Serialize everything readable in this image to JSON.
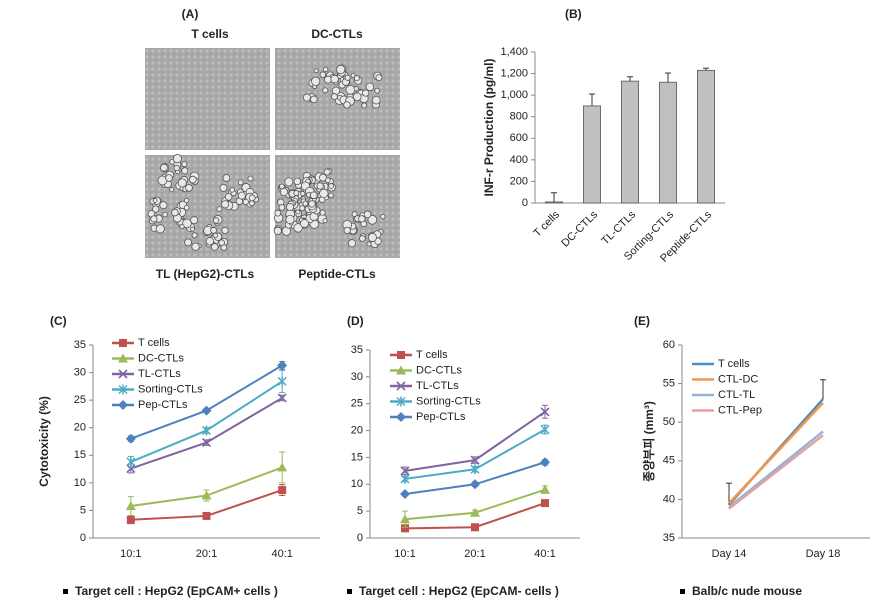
{
  "panel_a": {
    "label": "(A)",
    "captions": [
      "T cells",
      "DC-CTLs",
      "TL (HepG2)-CTLs",
      "Peptide-CTLs"
    ]
  },
  "chart_data": [
    {
      "type": "bar",
      "panel_label": "(B)",
      "y_label": "INF-r Production (pg/ml)",
      "categories": [
        "T cells",
        "DC-CTLs",
        "TL-CTLs",
        "Sorting-CTLs",
        "Peptide-CTLs"
      ],
      "values": [
        10,
        900,
        1130,
        1120,
        1230
      ],
      "errors": [
        85,
        110,
        40,
        85,
        20
      ],
      "error_bars": "up",
      "color": "#c0c0c0",
      "ylim": [
        0,
        1400
      ],
      "yticks": [
        0,
        200,
        400,
        600,
        800,
        {
          "value": 1000,
          "label": "1,000"
        },
        {
          "value": 1200,
          "label": "1,200"
        },
        {
          "value": 1400,
          "label": "1,400"
        }
      ]
    },
    {
      "type": "line",
      "panel_label": "(C)",
      "y_label": "Cytotoxicity (%)",
      "caption": "Target cell : HepG2 (EpCAM+ cells )",
      "categories": [
        "10:1",
        "20:1",
        "40:1"
      ],
      "ylim": [
        0,
        35
      ],
      "yticks": [
        0,
        5,
        10,
        15,
        20,
        25,
        30,
        35
      ],
      "error_bars": "both",
      "series": [
        {
          "name": "T cells",
          "color": "#c0504d",
          "marker": "square",
          "values": [
            3.3,
            4.0,
            8.7
          ],
          "errors": [
            0.7,
            0.5,
            1.0
          ]
        },
        {
          "name": "DC-CTLs",
          "color": "#9bbb59",
          "marker": "triangle",
          "values": [
            5.8,
            7.7,
            12.8
          ],
          "errors": [
            1.7,
            1.0,
            2.8
          ]
        },
        {
          "name": "TL-CTLs",
          "color": "#8064a2",
          "marker": "x",
          "values": [
            12.6,
            17.3,
            25.4
          ],
          "errors": [
            0.8,
            0.5,
            0.5
          ]
        },
        {
          "name": "Sorting-CTLs",
          "color": "#4bacc6",
          "marker": "star",
          "values": [
            13.8,
            19.5,
            28.4
          ],
          "errors": [
            1.0,
            0.5,
            2.0
          ]
        },
        {
          "name": "Pep-CTLs",
          "color": "#4f81bd",
          "marker": "diamond",
          "values": [
            18.0,
            23.1,
            31.3
          ],
          "errors": [
            0.5,
            0.4,
            0.7
          ]
        }
      ]
    },
    {
      "type": "line",
      "panel_label": "(D)",
      "caption": "Target cell : HepG2 (EpCAM- cells )",
      "categories": [
        "10:1",
        "20:1",
        "40:1"
      ],
      "ylim": [
        0,
        35
      ],
      "yticks": [
        0,
        5,
        10,
        15,
        20,
        25,
        30,
        35
      ],
      "error_bars": "both",
      "series": [
        {
          "name": "T cells",
          "color": "#c0504d",
          "marker": "square",
          "values": [
            1.8,
            2.0,
            6.5
          ],
          "errors": [
            0.4,
            0.5,
            0.6
          ]
        },
        {
          "name": "DC-CTLs",
          "color": "#9bbb59",
          "marker": "triangle",
          "values": [
            3.5,
            4.7,
            9.0
          ],
          "errors": [
            1.5,
            0.5,
            0.7
          ]
        },
        {
          "name": "TL-CTLs",
          "color": "#8064a2",
          "marker": "x",
          "values": [
            12.5,
            14.5,
            23.5
          ],
          "errors": [
            0.7,
            0.6,
            1.2
          ]
        },
        {
          "name": "Sorting-CTLs",
          "color": "#4bacc6",
          "marker": "star",
          "values": [
            11.0,
            12.8,
            20.2
          ],
          "errors": [
            0.5,
            0.5,
            0.8
          ]
        },
        {
          "name": "Pep-CTLs",
          "color": "#4f81bd",
          "marker": "diamond",
          "values": [
            8.2,
            10.0,
            14.1
          ],
          "errors": [
            0.3,
            0.4,
            0.5
          ]
        }
      ]
    },
    {
      "type": "line",
      "panel_label": "(E)",
      "y_label": "종양부피 (mm³)",
      "caption": "Balb/c nude mouse",
      "categories": [
        "Day 14",
        "Day 18"
      ],
      "ylim": [
        35,
        60
      ],
      "yticks": [
        35,
        40,
        45,
        50,
        55,
        60
      ],
      "error_bars": "up",
      "series": [
        {
          "name": "T cells",
          "color": "#4a8fc7",
          "values": [
            39.3,
            53.0
          ],
          "errors": [
            2.8,
            2.5
          ]
        },
        {
          "name": "CTL-DC",
          "color": "#f79646",
          "values": [
            39.5,
            52.5
          ]
        },
        {
          "name": "CTL-TL",
          "color": "#95b3d7",
          "values": [
            39.0,
            48.8
          ]
        },
        {
          "name": "CTL-Pep",
          "color": "#e6a0a0",
          "values": [
            38.8,
            48.3
          ]
        }
      ]
    }
  ]
}
